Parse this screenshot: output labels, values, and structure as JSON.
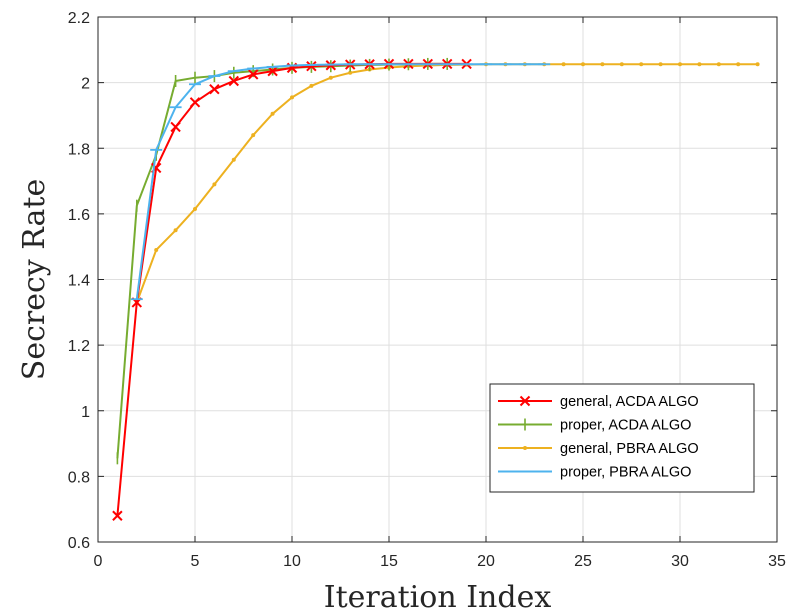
{
  "chart_data": {
    "type": "line",
    "xlabel": "Iteration Index",
    "ylabel": "Secrecy Rate",
    "xlim": [
      0,
      35
    ],
    "ylim": [
      0.6,
      2.2
    ],
    "xticks": [
      0,
      5,
      10,
      15,
      20,
      25,
      30,
      35
    ],
    "yticks": [
      0.6,
      0.8,
      1,
      1.2,
      1.4,
      1.6,
      1.8,
      2,
      2.2
    ],
    "xtick_labels": [
      "0",
      "5",
      "10",
      "15",
      "20",
      "25",
      "30",
      "35"
    ],
    "ytick_labels": [
      "0.6",
      "0.8",
      "1",
      "1.2",
      "1.4",
      "1.6",
      "1.8",
      "2",
      "2.2"
    ],
    "grid": true,
    "legend_position": "lower-right",
    "series": [
      {
        "name": "general, ACDA ALGO",
        "color": "#ff0000",
        "marker": "x",
        "x": [
          1,
          2,
          3,
          4,
          5,
          6,
          7,
          8,
          9,
          10,
          11,
          12,
          13,
          14,
          15,
          16,
          17,
          18,
          19
        ],
        "y": [
          0.68,
          1.33,
          1.74,
          1.865,
          1.94,
          1.98,
          2.005,
          2.025,
          2.035,
          2.045,
          2.05,
          2.053,
          2.055,
          2.056,
          2.057,
          2.057,
          2.057,
          2.057,
          2.057
        ]
      },
      {
        "name": "proper, ACDA ALGO",
        "color": "#77ac30",
        "marker": "|",
        "x": [
          1,
          2,
          3,
          4,
          5,
          6,
          7,
          8,
          9,
          10,
          11,
          12,
          13,
          14,
          15,
          16,
          17,
          18
        ],
        "y": [
          0.855,
          1.625,
          1.78,
          2.005,
          2.015,
          2.02,
          2.03,
          2.035,
          2.04,
          2.045,
          2.048,
          2.05,
          2.052,
          2.054,
          2.055,
          2.056,
          2.057,
          2.057
        ]
      },
      {
        "name": "general, PBRA ALGO",
        "color": "#edb120",
        "marker": ".",
        "x": [
          2,
          3,
          4,
          5,
          6,
          7,
          8,
          9,
          10,
          11,
          12,
          13,
          14,
          15,
          16,
          17,
          18,
          19,
          20,
          21,
          22,
          23,
          24,
          25,
          26,
          27,
          28,
          29,
          30,
          31,
          32,
          33,
          34
        ],
        "y": [
          1.33,
          1.49,
          1.55,
          1.615,
          1.69,
          1.765,
          1.84,
          1.905,
          1.955,
          1.99,
          2.015,
          2.03,
          2.04,
          2.046,
          2.05,
          2.052,
          2.054,
          2.055,
          2.056,
          2.056,
          2.056,
          2.056,
          2.056,
          2.056,
          2.056,
          2.056,
          2.056,
          2.056,
          2.056,
          2.056,
          2.056,
          2.056,
          2.056
        ]
      },
      {
        "name": "proper, PBRA ALGO",
        "color": "#4db3ee",
        "marker": "-",
        "x": [
          2,
          3,
          4,
          5,
          6,
          7,
          8,
          9,
          10,
          11,
          12,
          13,
          14,
          15,
          16,
          17,
          18,
          19,
          20,
          21,
          22,
          23
        ],
        "y": [
          1.34,
          1.795,
          1.925,
          1.995,
          2.02,
          2.035,
          2.043,
          2.048,
          2.052,
          2.054,
          2.055,
          2.056,
          2.056,
          2.056,
          2.056,
          2.056,
          2.056,
          2.056,
          2.056,
          2.056,
          2.056,
          2.056
        ]
      }
    ]
  }
}
